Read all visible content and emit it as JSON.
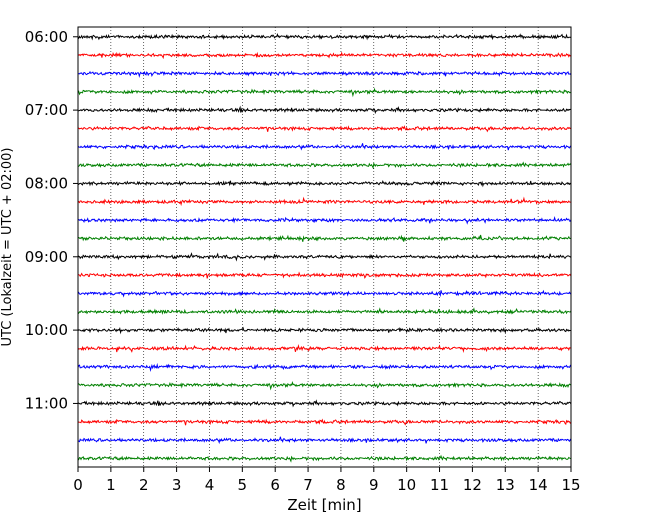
{
  "chart_data": {
    "type": "line",
    "title": "",
    "xlabel": "Zeit  [min]",
    "ylabel": "UTC (Lokalzeit = UTC + 02:00)",
    "xlim": [
      0,
      15
    ],
    "x_ticks": [
      "0",
      "1",
      "2",
      "3",
      "4",
      "5",
      "6",
      "7",
      "8",
      "9",
      "10",
      "11",
      "12",
      "13",
      "14",
      "15"
    ],
    "y_time_range": [
      "05:52",
      "11:52"
    ],
    "y_ticks": [
      "06:00",
      "07:00",
      "08:00",
      "09:00",
      "10:00",
      "11:00"
    ],
    "trace_interval_minutes": 15,
    "trace_start_times": [
      "06:00",
      "06:15",
      "06:30",
      "06:45",
      "07:00",
      "07:15",
      "07:30",
      "07:45",
      "08:00",
      "08:15",
      "08:30",
      "08:45",
      "09:00",
      "09:15",
      "09:30",
      "09:45",
      "10:00",
      "10:15",
      "10:30",
      "10:45",
      "11:00",
      "11:15",
      "11:30",
      "11:45"
    ],
    "trace_colors": [
      "#000000",
      "#ff0000",
      "#0000ff",
      "#008000"
    ],
    "grid": "vertical dotted at each minute",
    "legend": "none"
  }
}
